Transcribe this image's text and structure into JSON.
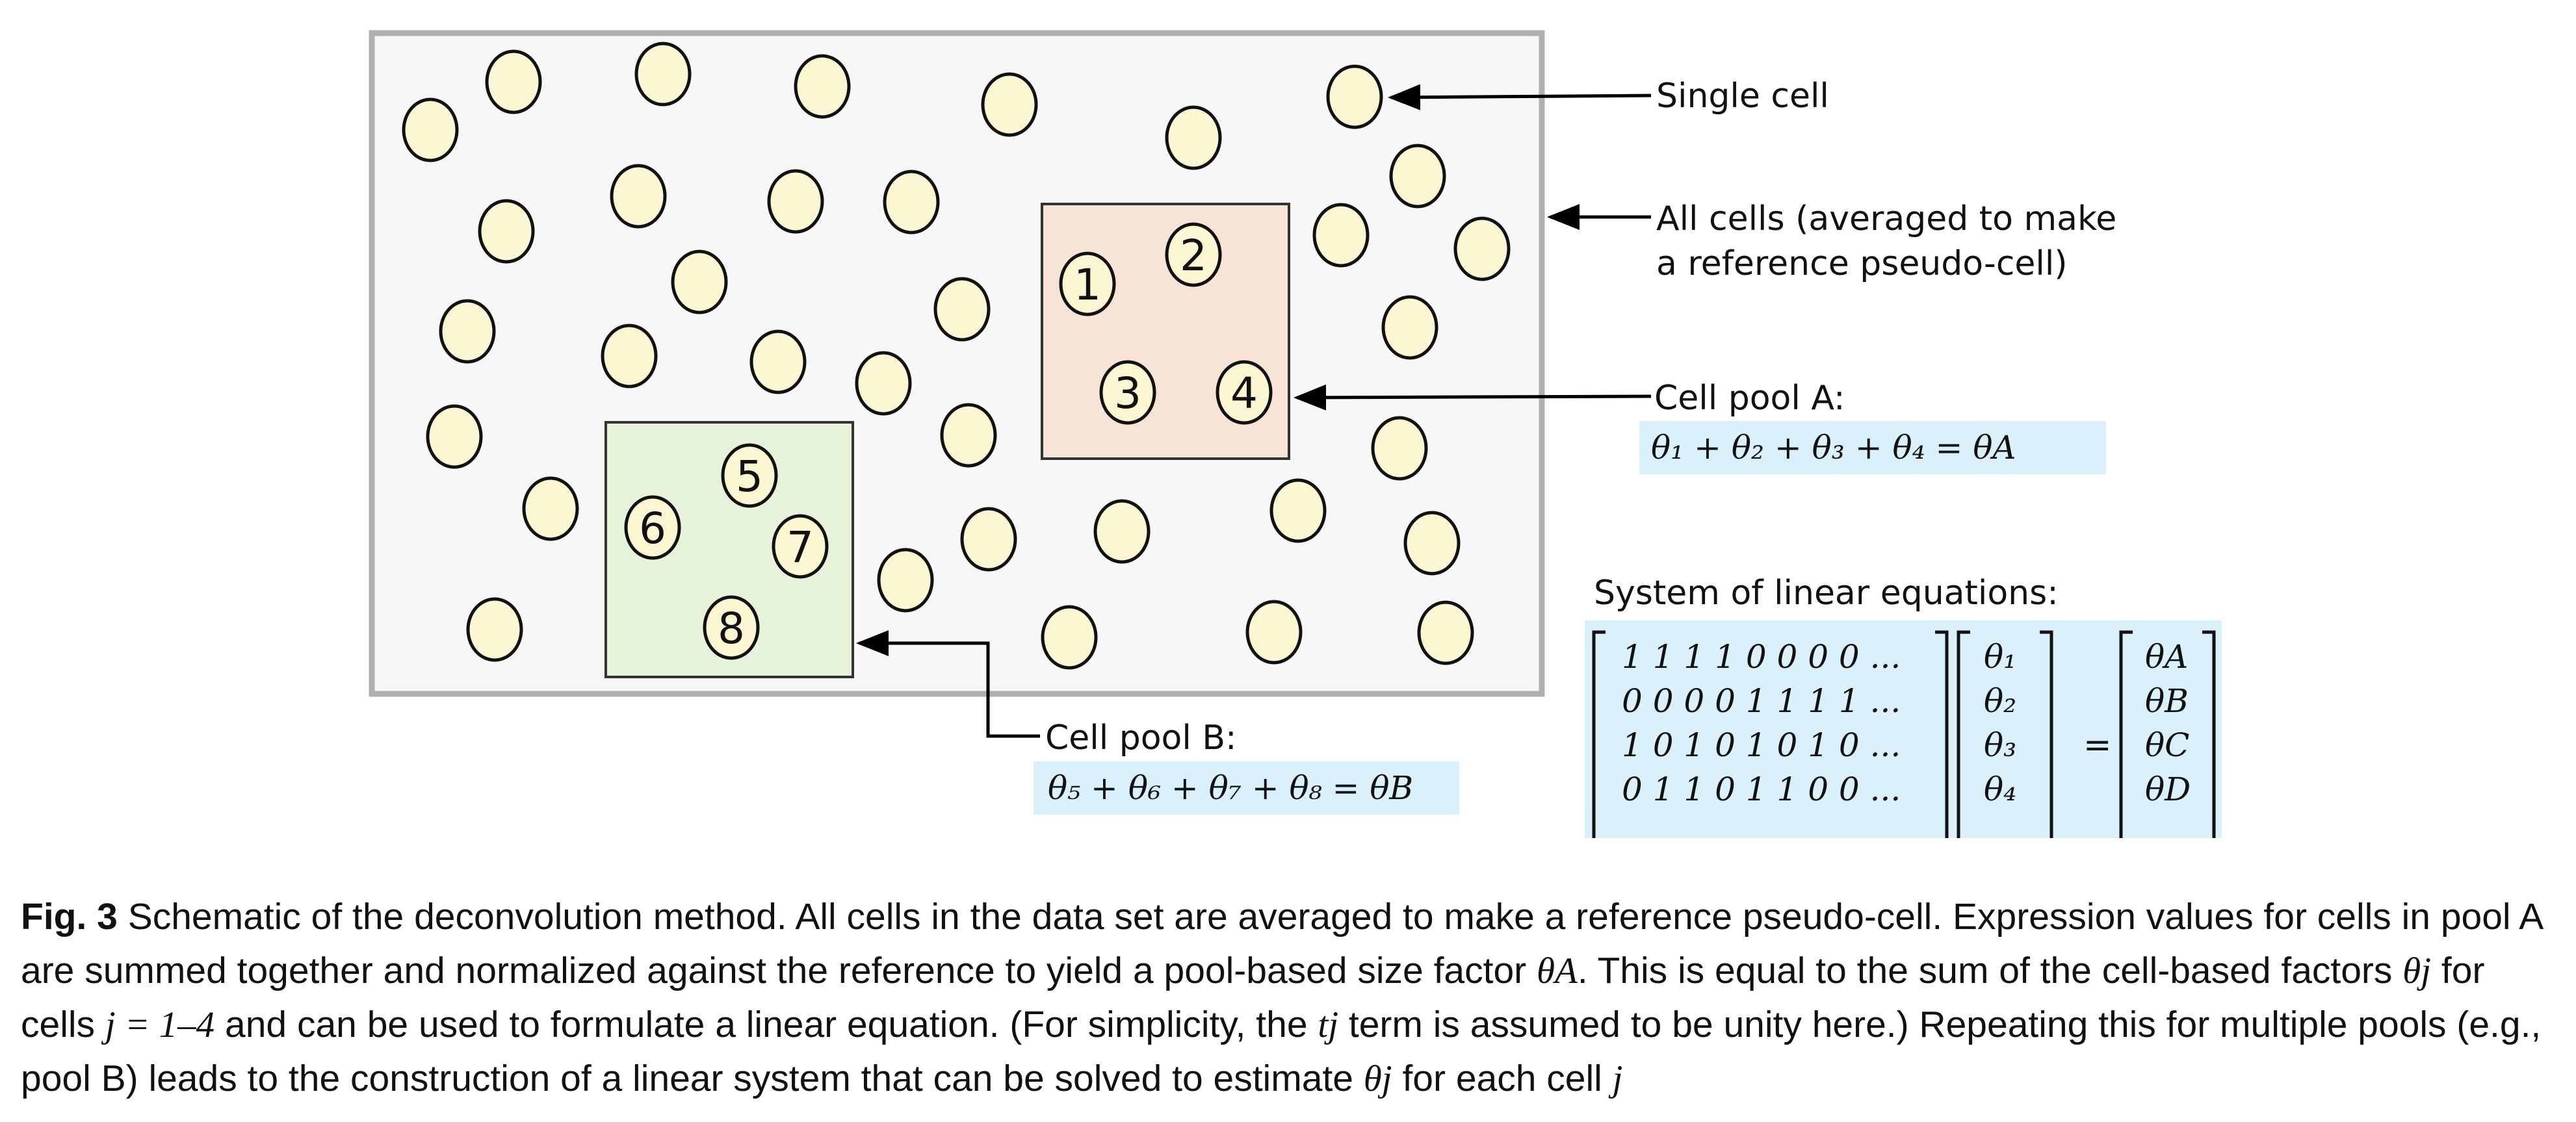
{
  "labels": {
    "single_cell": "Single cell",
    "all_cells_line1": "All cells (averaged to make",
    "all_cells_line2": "a reference pseudo-cell)",
    "pool_a": "Cell pool A:",
    "pool_b": "Cell pool B:",
    "system": "System of linear equations:"
  },
  "pool_a_cells": [
    "1",
    "2",
    "3",
    "4"
  ],
  "pool_b_cells": [
    "5",
    "6",
    "7",
    "8"
  ],
  "equations": {
    "pool_a": "θ₁ + θ₂ + θ₃ + θ₄ = θA",
    "pool_b": "θ₅ + θ₆ + θ₇ + θ₈ = θB"
  },
  "matrix": {
    "rows": [
      "1 1 1 1 0 0 0 0 ...",
      "0 0 0 0 1 1 1 1 ...",
      "1 0 1 0 1 0 1 0 ...",
      "0 1 1 0 1 1 0 0 ...",
      "..."
    ],
    "theta": [
      "θ₁",
      "θ₂",
      "θ₃",
      "θ₄",
      "..."
    ],
    "equals": "=",
    "pools": [
      "θA",
      "θB",
      "θC",
      "θD",
      "..."
    ]
  },
  "caption": {
    "fig_label": "Fig. 3",
    "text_1": " Schematic of the deconvolution method. All cells in the data set are averaged to make a reference pseudo-cell. Expression values for cells in pool A are summed together and normalized against the reference to yield a pool-based size factor ",
    "theta_a": "θA",
    "text_2": ". This is equal to the sum of the cell-based factors ",
    "theta_j": "θj",
    "text_3": " for cells ",
    "j_range": "j = 1–4",
    "text_4": " and can be used to formulate a linear equation. (For simplicity, the ",
    "t_j": "tj",
    "text_5": " term is assumed to be unity here.) Repeating this for multiple pools (e.g., pool B) leads to the construction of a linear system that can be solved to estimate ",
    "theta_j_2": "θj",
    "text_6": " for each cell ",
    "j": "j"
  },
  "colors": {
    "cell_fill": "#fdf6d3",
    "panel_fill": "#f7f7f7",
    "panel_stroke": "#b0b0b0",
    "pool_a_fill": "#f8e4d6",
    "pool_b_fill": "#e6f2da",
    "highlight": "#daf1fb"
  }
}
